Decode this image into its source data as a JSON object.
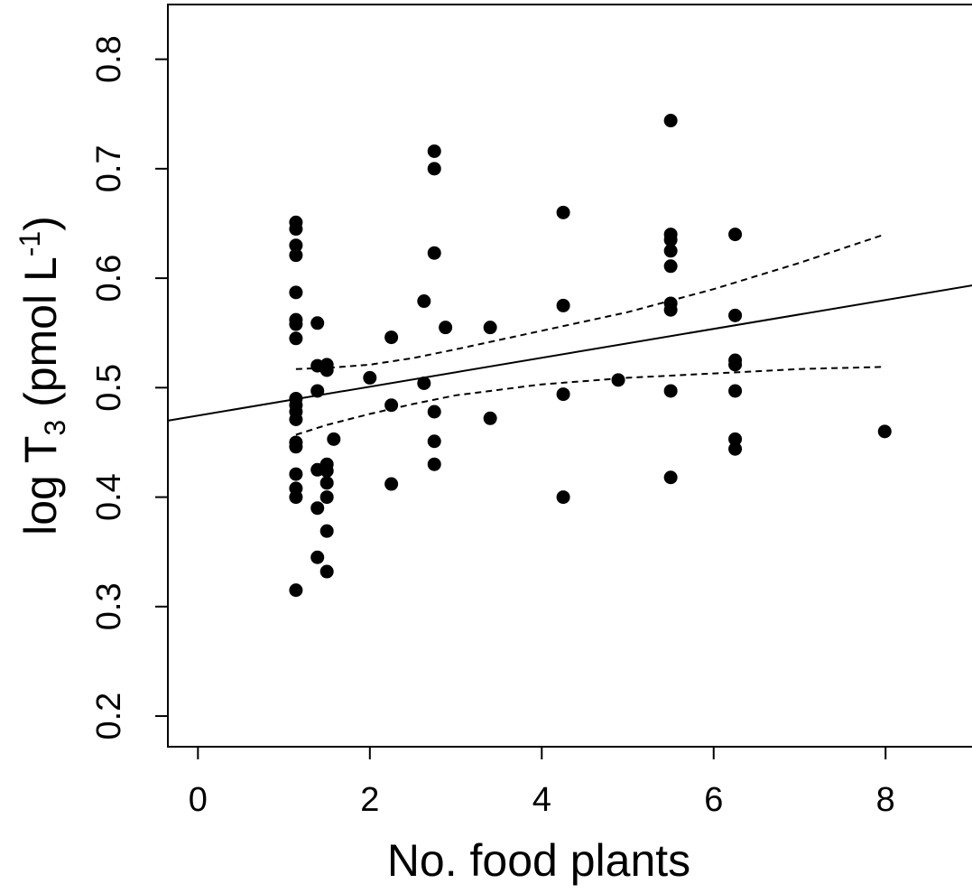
{
  "chart_data": {
    "type": "scatter",
    "title": "",
    "xlabel": "No. food plants",
    "ylabel": {
      "prefix": "log T",
      "subscript": "3",
      "units_open": " (pmol L",
      "superscript": "-1",
      "units_close": ")"
    },
    "xlim": [
      -0.35,
      9.1
    ],
    "ylim": [
      0.172,
      0.85
    ],
    "x_ticks": [
      0,
      2,
      4,
      6,
      8
    ],
    "x_tick_labels": [
      "0",
      "2",
      "4",
      "6",
      "8"
    ],
    "y_ticks": [
      0.2,
      0.3,
      0.4,
      0.5,
      0.6,
      0.7,
      0.8
    ],
    "y_tick_labels": [
      "0.2",
      "0.3",
      "0.4",
      "0.5",
      "0.6",
      "0.7",
      "0.8"
    ],
    "grid": false,
    "legend": "none",
    "points": [
      {
        "x": 1.14,
        "y": 0.651
      },
      {
        "x": 1.14,
        "y": 0.645
      },
      {
        "x": 1.14,
        "y": 0.63
      },
      {
        "x": 1.14,
        "y": 0.621
      },
      {
        "x": 1.14,
        "y": 0.587
      },
      {
        "x": 1.14,
        "y": 0.562
      },
      {
        "x": 1.14,
        "y": 0.558
      },
      {
        "x": 1.14,
        "y": 0.545
      },
      {
        "x": 1.14,
        "y": 0.49
      },
      {
        "x": 1.14,
        "y": 0.484
      },
      {
        "x": 1.14,
        "y": 0.478
      },
      {
        "x": 1.14,
        "y": 0.471
      },
      {
        "x": 1.14,
        "y": 0.45
      },
      {
        "x": 1.14,
        "y": 0.446
      },
      {
        "x": 1.14,
        "y": 0.421
      },
      {
        "x": 1.14,
        "y": 0.408
      },
      {
        "x": 1.14,
        "y": 0.4
      },
      {
        "x": 1.14,
        "y": 0.315
      },
      {
        "x": 1.39,
        "y": 0.559
      },
      {
        "x": 1.39,
        "y": 0.52
      },
      {
        "x": 1.39,
        "y": 0.497
      },
      {
        "x": 1.39,
        "y": 0.425
      },
      {
        "x": 1.39,
        "y": 0.39
      },
      {
        "x": 1.39,
        "y": 0.345
      },
      {
        "x": 1.5,
        "y": 0.521
      },
      {
        "x": 1.5,
        "y": 0.516
      },
      {
        "x": 1.5,
        "y": 0.43
      },
      {
        "x": 1.5,
        "y": 0.424
      },
      {
        "x": 1.5,
        "y": 0.413
      },
      {
        "x": 1.5,
        "y": 0.4
      },
      {
        "x": 1.5,
        "y": 0.369
      },
      {
        "x": 1.5,
        "y": 0.332
      },
      {
        "x": 1.58,
        "y": 0.453
      },
      {
        "x": 2.0,
        "y": 0.509
      },
      {
        "x": 2.25,
        "y": 0.546
      },
      {
        "x": 2.25,
        "y": 0.484
      },
      {
        "x": 2.25,
        "y": 0.412
      },
      {
        "x": 2.63,
        "y": 0.579
      },
      {
        "x": 2.63,
        "y": 0.504
      },
      {
        "x": 2.75,
        "y": 0.716
      },
      {
        "x": 2.75,
        "y": 0.7
      },
      {
        "x": 2.75,
        "y": 0.623
      },
      {
        "x": 2.75,
        "y": 0.478
      },
      {
        "x": 2.75,
        "y": 0.451
      },
      {
        "x": 2.75,
        "y": 0.43
      },
      {
        "x": 2.88,
        "y": 0.555
      },
      {
        "x": 3.4,
        "y": 0.555
      },
      {
        "x": 3.4,
        "y": 0.472
      },
      {
        "x": 4.25,
        "y": 0.66
      },
      {
        "x": 4.25,
        "y": 0.575
      },
      {
        "x": 4.25,
        "y": 0.494
      },
      {
        "x": 4.25,
        "y": 0.4
      },
      {
        "x": 4.89,
        "y": 0.507
      },
      {
        "x": 5.5,
        "y": 0.744
      },
      {
        "x": 5.5,
        "y": 0.64
      },
      {
        "x": 5.5,
        "y": 0.635
      },
      {
        "x": 5.5,
        "y": 0.625
      },
      {
        "x": 5.5,
        "y": 0.611
      },
      {
        "x": 5.5,
        "y": 0.577
      },
      {
        "x": 5.5,
        "y": 0.571
      },
      {
        "x": 5.5,
        "y": 0.497
      },
      {
        "x": 5.5,
        "y": 0.418
      },
      {
        "x": 6.25,
        "y": 0.64
      },
      {
        "x": 6.25,
        "y": 0.566
      },
      {
        "x": 6.25,
        "y": 0.525
      },
      {
        "x": 6.25,
        "y": 0.521
      },
      {
        "x": 6.25,
        "y": 0.497
      },
      {
        "x": 6.25,
        "y": 0.453
      },
      {
        "x": 6.25,
        "y": 0.444
      },
      {
        "x": 7.99,
        "y": 0.46
      }
    ],
    "fit_line": {
      "intercept": 0.4745,
      "slope": 0.0132,
      "x_range": [
        -0.35,
        9.1
      ]
    },
    "ci_upper": [
      {
        "x": 1.14,
        "y": 0.517
      },
      {
        "x": 1.5,
        "y": 0.518
      },
      {
        "x": 2.0,
        "y": 0.521
      },
      {
        "x": 2.5,
        "y": 0.527
      },
      {
        "x": 3.0,
        "y": 0.535
      },
      {
        "x": 4.0,
        "y": 0.552
      },
      {
        "x": 5.0,
        "y": 0.569
      },
      {
        "x": 6.0,
        "y": 0.59
      },
      {
        "x": 7.0,
        "y": 0.614
      },
      {
        "x": 7.99,
        "y": 0.64
      }
    ],
    "ci_lower": [
      {
        "x": 1.14,
        "y": 0.457
      },
      {
        "x": 1.5,
        "y": 0.466
      },
      {
        "x": 2.0,
        "y": 0.476
      },
      {
        "x": 2.5,
        "y": 0.485
      },
      {
        "x": 3.0,
        "y": 0.493
      },
      {
        "x": 4.0,
        "y": 0.503
      },
      {
        "x": 5.0,
        "y": 0.509
      },
      {
        "x": 6.0,
        "y": 0.513
      },
      {
        "x": 7.0,
        "y": 0.517
      },
      {
        "x": 7.99,
        "y": 0.519
      }
    ]
  }
}
